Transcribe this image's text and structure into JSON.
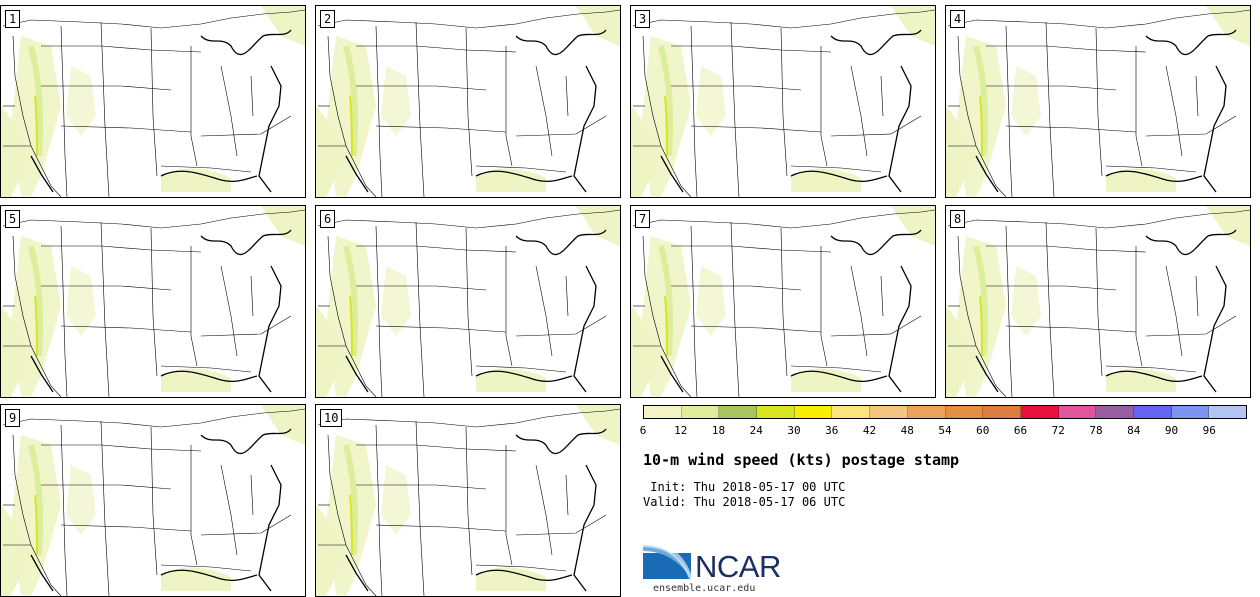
{
  "stamps": [
    {
      "label": "1"
    },
    {
      "label": "2"
    },
    {
      "label": "3"
    },
    {
      "label": "4"
    },
    {
      "label": "5"
    },
    {
      "label": "6"
    },
    {
      "label": "7"
    },
    {
      "label": "8"
    },
    {
      "label": "9"
    },
    {
      "label": "10"
    }
  ],
  "legend": {
    "ticks": [
      "6",
      "12",
      "18",
      "24",
      "30",
      "36",
      "42",
      "48",
      "54",
      "60",
      "66",
      "72",
      "78",
      "84",
      "90",
      "96"
    ],
    "colors": [
      "#f4f5c6",
      "#dfee9b",
      "#a8c55d",
      "#d8e620",
      "#f7ee02",
      "#fde37c",
      "#f4c57f",
      "#eba25a",
      "#e48e41",
      "#dd7c3f",
      "#e8113e",
      "#e0559c",
      "#985da1",
      "#6364f1",
      "#7d94ef",
      "#b3c5f4"
    ]
  },
  "title": "10-m wind speed (kts) postage stamp",
  "init_line": " Init: Thu 2018-05-17 00 UTC",
  "valid_line": "Valid: Thu 2018-05-17 06 UTC",
  "logo": {
    "name": "NCAR",
    "site": "ensemble.ucar.edu",
    "color": "#1b2f66",
    "accent": "#1a6bb5"
  },
  "map_colors": {
    "light": "#eef4c4",
    "medium": "#dcee9b",
    "strong": "#d8e620"
  }
}
